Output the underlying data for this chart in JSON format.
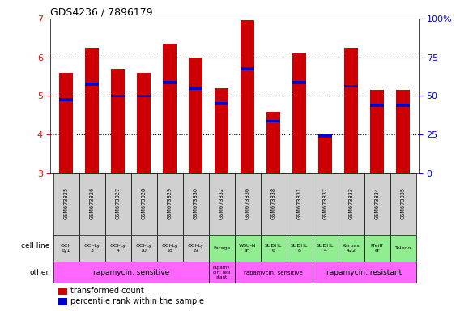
{
  "title": "GDS4236 / 7896179",
  "samples": [
    "GSM673825",
    "GSM673826",
    "GSM673827",
    "GSM673828",
    "GSM673829",
    "GSM673830",
    "GSM673832",
    "GSM673836",
    "GSM673838",
    "GSM673831",
    "GSM673837",
    "GSM673833",
    "GSM673834",
    "GSM673835"
  ],
  "transformed_count": [
    5.6,
    6.25,
    5.7,
    5.6,
    6.35,
    6.0,
    5.2,
    6.95,
    4.6,
    6.1,
    3.95,
    6.25,
    5.15,
    5.15
  ],
  "percentile_rank": [
    4.9,
    5.3,
    5.0,
    5.0,
    5.35,
    5.2,
    4.8,
    5.7,
    4.35,
    5.35,
    3.97,
    5.25,
    4.75,
    4.75
  ],
  "cell_lines": [
    "OCI-\nLy1",
    "OCI-Ly\n3",
    "OCI-Ly\n4",
    "OCI-Ly\n10",
    "OCI-Ly\n18",
    "OCI-Ly\n19",
    "Farage",
    "WSU-N\nIH",
    "SUDHL\n6",
    "SUDHL\n8",
    "SUDHL\n4",
    "Karpas\n422",
    "Pfeiff\ner",
    "Toledo"
  ],
  "cell_line_colors": [
    "#d0d0d0",
    "#d0d0d0",
    "#d0d0d0",
    "#d0d0d0",
    "#d0d0d0",
    "#d0d0d0",
    "#90ee90",
    "#90ee90",
    "#90ee90",
    "#90ee90",
    "#90ee90",
    "#90ee90",
    "#90ee90",
    "#90ee90"
  ],
  "ylim": [
    3,
    7
  ],
  "yticks_left": [
    3,
    4,
    5,
    6,
    7
  ],
  "yticks_right": [
    0,
    25,
    50,
    75,
    100
  ],
  "bar_color": "#cc0000",
  "blue_color": "#0000cc",
  "background_color": "#ffffff",
  "gsm_bg": "#d0d0d0",
  "other_color": "#ff66ff"
}
